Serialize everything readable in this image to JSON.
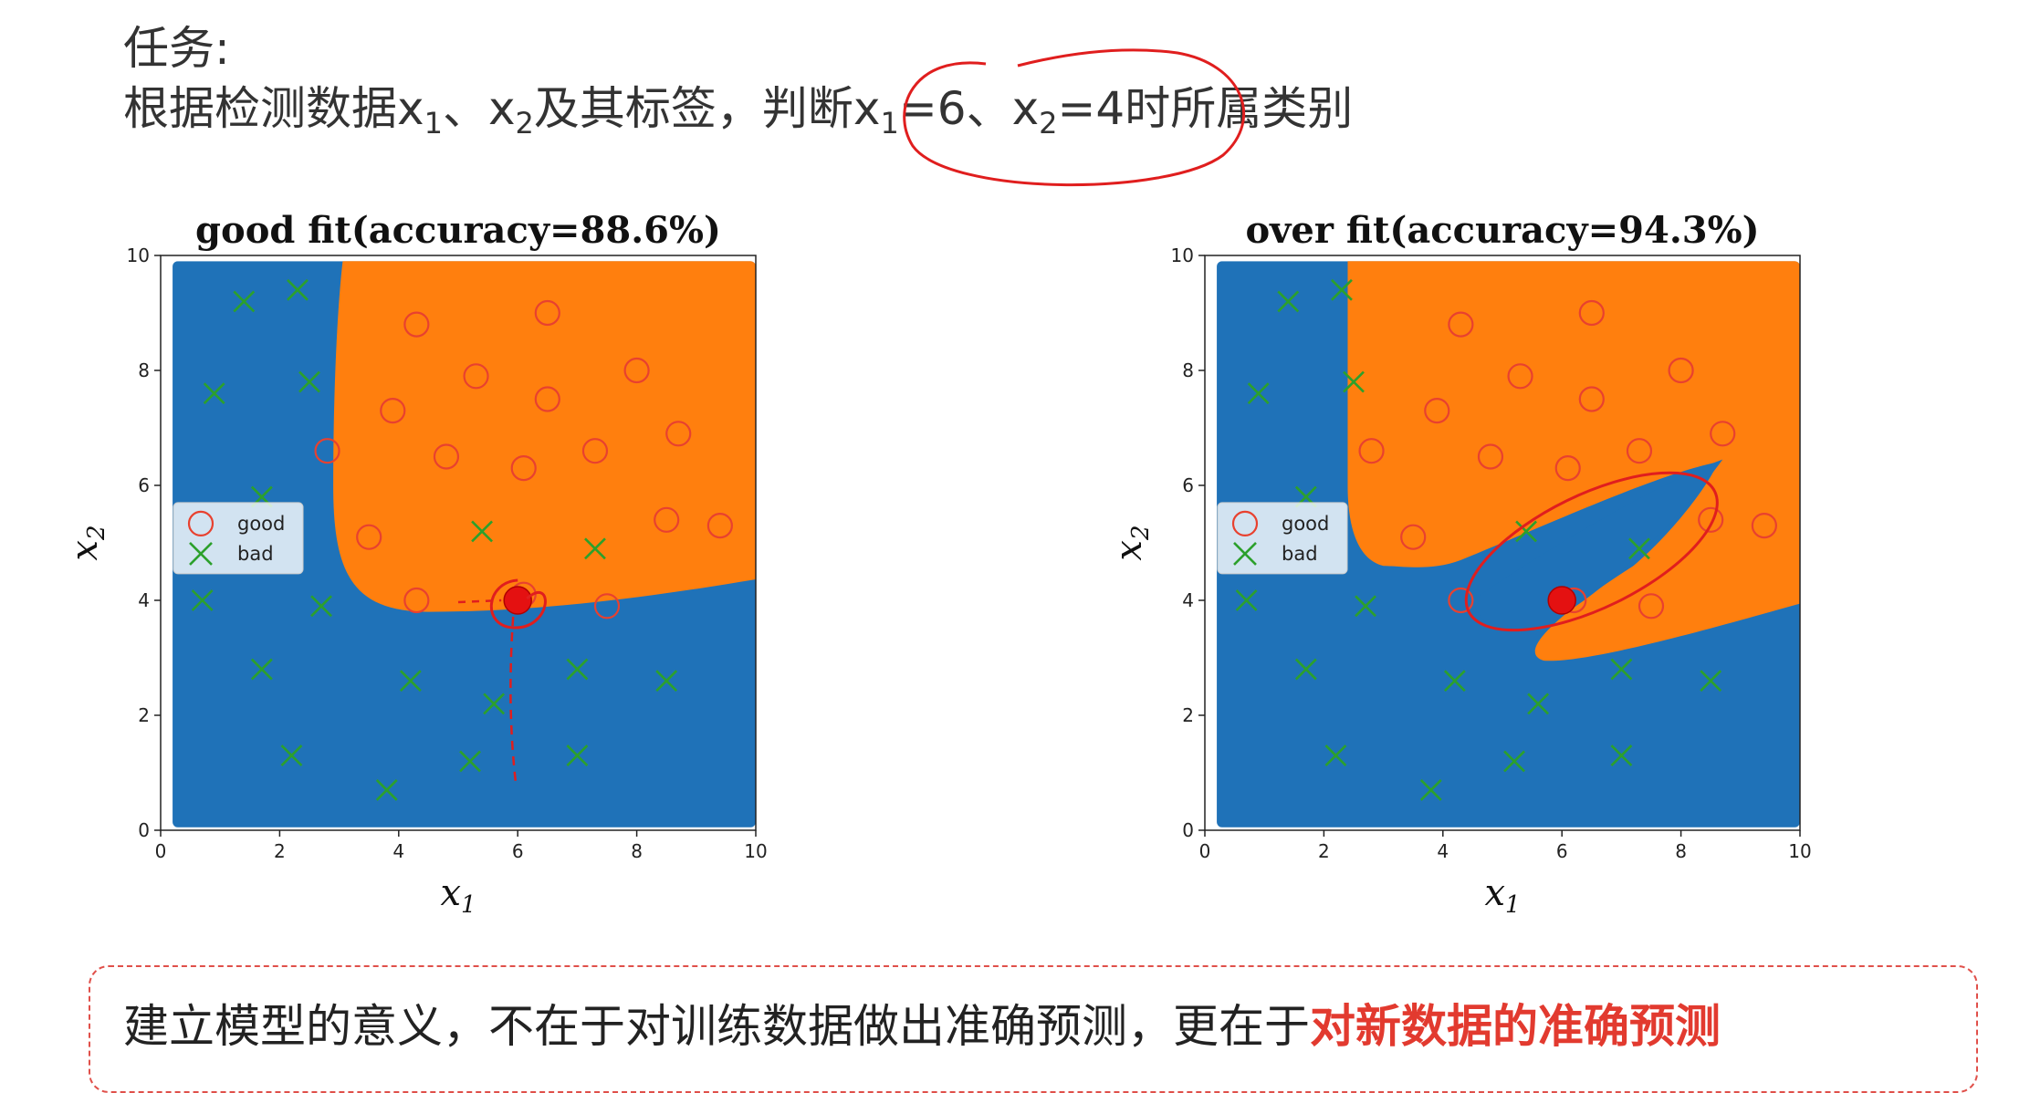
{
  "task": {
    "title": "任务:",
    "line_prefix": "根据检测数据x",
    "sub1": "1",
    "sep1": "、x",
    "sub2": "2",
    "middle": "及其标签，判断x",
    "sub3": "1",
    "eq1": "=6、x",
    "sub4": "2",
    "eq2": "=4时所属类别"
  },
  "note": {
    "normal": "建立模型的意义，不在于对训练数据做出准确预测，更在于",
    "highlight": "对新数据的准确预测"
  },
  "colors": {
    "region_bad": "#1f72b8",
    "region_good": "#ff7f0e",
    "good_marker": "#e8412f",
    "bad_marker": "#2ca02c",
    "annotation": "#e01e1e"
  },
  "chart_data": [
    {
      "type": "scatter",
      "title": "good fit(accuracy=88.6%)",
      "xlabel": "x1",
      "ylabel": "x2",
      "xlim": [
        0,
        10
      ],
      "ylim": [
        0,
        10
      ],
      "xticks": [
        "0",
        "2",
        "4",
        "6",
        "8",
        "10"
      ],
      "yticks": [
        "0",
        "2",
        "4",
        "6",
        "8",
        "10"
      ],
      "legend": {
        "placement": "center-left",
        "entries": [
          "good",
          "bad"
        ]
      },
      "series": [
        {
          "name": "good",
          "marker": "circle",
          "points": [
            [
              4.3,
              8.8
            ],
            [
              6.5,
              9.0
            ],
            [
              3.9,
              7.3
            ],
            [
              5.3,
              7.9
            ],
            [
              6.5,
              7.5
            ],
            [
              8.0,
              8.0
            ],
            [
              8.7,
              6.9
            ],
            [
              2.8,
              6.6
            ],
            [
              4.8,
              6.5
            ],
            [
              6.1,
              6.3
            ],
            [
              7.3,
              6.6
            ],
            [
              3.5,
              5.1
            ],
            [
              8.5,
              5.4
            ],
            [
              9.4,
              5.3
            ],
            [
              4.3,
              4.0
            ],
            [
              6.1,
              4.1
            ],
            [
              7.5,
              3.9
            ]
          ]
        },
        {
          "name": "bad",
          "marker": "x",
          "points": [
            [
              1.4,
              9.2
            ],
            [
              2.3,
              9.4
            ],
            [
              0.9,
              7.6
            ],
            [
              2.5,
              7.8
            ],
            [
              1.7,
              5.8
            ],
            [
              5.4,
              5.2
            ],
            [
              7.3,
              4.9
            ],
            [
              0.7,
              4.0
            ],
            [
              2.7,
              3.9
            ],
            [
              1.7,
              2.8
            ],
            [
              4.2,
              2.6
            ],
            [
              5.6,
              2.2
            ],
            [
              7.0,
              2.8
            ],
            [
              8.5,
              2.6
            ],
            [
              2.2,
              1.3
            ],
            [
              3.8,
              0.7
            ],
            [
              5.2,
              1.2
            ],
            [
              7.0,
              1.3
            ]
          ]
        }
      ],
      "query_point": [
        6,
        4
      ]
    },
    {
      "type": "scatter",
      "title": "over fit(accuracy=94.3%)",
      "xlabel": "x1",
      "ylabel": "x2",
      "xlim": [
        0,
        10
      ],
      "ylim": [
        0,
        10
      ],
      "xticks": [
        "0",
        "2",
        "4",
        "6",
        "8",
        "10"
      ],
      "yticks": [
        "0",
        "2",
        "4",
        "6",
        "8",
        "10"
      ],
      "legend": {
        "placement": "center-left",
        "entries": [
          "good",
          "bad"
        ]
      },
      "series": [
        {
          "name": "good",
          "marker": "circle",
          "points": [
            [
              4.3,
              8.8
            ],
            [
              6.5,
              9.0
            ],
            [
              3.9,
              7.3
            ],
            [
              5.3,
              7.9
            ],
            [
              6.5,
              7.5
            ],
            [
              8.0,
              8.0
            ],
            [
              8.7,
              6.9
            ],
            [
              2.8,
              6.6
            ],
            [
              4.8,
              6.5
            ],
            [
              6.1,
              6.3
            ],
            [
              7.3,
              6.6
            ],
            [
              3.5,
              5.1
            ],
            [
              8.5,
              5.4
            ],
            [
              9.4,
              5.3
            ],
            [
              4.3,
              4.0
            ],
            [
              6.2,
              4.0
            ],
            [
              7.5,
              3.9
            ]
          ]
        },
        {
          "name": "bad",
          "marker": "x",
          "points": [
            [
              1.4,
              9.2
            ],
            [
              2.3,
              9.4
            ],
            [
              0.9,
              7.6
            ],
            [
              2.5,
              7.8
            ],
            [
              1.7,
              5.8
            ],
            [
              5.4,
              5.2
            ],
            [
              7.3,
              4.9
            ],
            [
              0.7,
              4.0
            ],
            [
              2.7,
              3.9
            ],
            [
              1.7,
              2.8
            ],
            [
              4.2,
              2.6
            ],
            [
              5.6,
              2.2
            ],
            [
              7.0,
              2.8
            ],
            [
              8.5,
              2.6
            ],
            [
              2.2,
              1.3
            ],
            [
              3.8,
              0.7
            ],
            [
              5.2,
              1.2
            ],
            [
              7.0,
              1.3
            ]
          ]
        }
      ],
      "query_point": [
        6,
        4
      ]
    }
  ]
}
